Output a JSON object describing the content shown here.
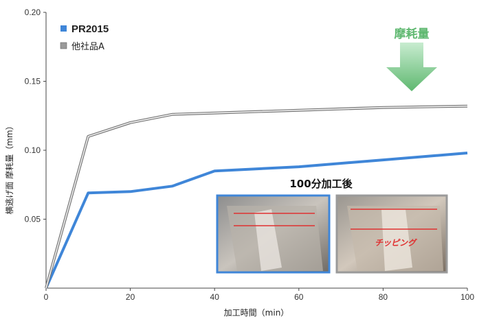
{
  "chart_data": {
    "type": "line",
    "xlabel": "加工時間（min）",
    "ylabel": "横逃げ面 摩耗量（mm）",
    "xlim": [
      0,
      100
    ],
    "ylim": [
      0,
      0.2
    ],
    "x_ticks": [
      "0",
      "20",
      "40",
      "60",
      "80",
      "100"
    ],
    "y_ticks": [
      "0.05",
      "0.10",
      "0.15",
      "0.20"
    ],
    "legend_position": "top-left",
    "grid": false,
    "series": [
      {
        "name": "PR2015",
        "color": "#3f86d8",
        "points": [
          [
            0,
            0
          ],
          [
            10,
            0.069
          ],
          [
            20,
            0.07
          ],
          [
            30,
            0.074
          ],
          [
            40,
            0.085
          ],
          [
            60,
            0.088
          ],
          [
            80,
            0.093
          ],
          [
            100,
            0.098
          ]
        ]
      },
      {
        "name": "他社品A",
        "color": "#a0a0a0",
        "points": [
          [
            0,
            0
          ],
          [
            10,
            0.11
          ],
          [
            20,
            0.12
          ],
          [
            30,
            0.126
          ],
          [
            40,
            0.127
          ],
          [
            60,
            0.129
          ],
          [
            80,
            0.131
          ],
          [
            100,
            0.132
          ]
        ]
      }
    ],
    "annotations": {
      "wear_arrow_label": "摩耗量",
      "inset_title": "100分加工後",
      "chipping_label": "チッピング"
    }
  },
  "colors": {
    "arrow": "#6cc27a",
    "inset_blue_border": "#3f86d8",
    "inset_gray_border": "#9a9a9a",
    "red_line": "#e03030"
  }
}
